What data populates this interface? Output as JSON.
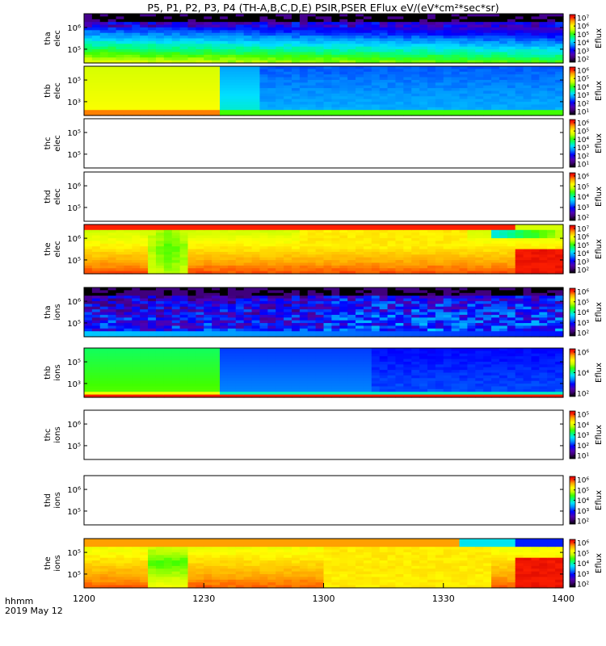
{
  "chart_data": {
    "type": "heatmap",
    "title": "P5, P1, P2, P3, P4 (TH-A,B,C,D,E) PSIR,PSER EFlux eV/(eV*cm²*sec*sr)",
    "time_axis": {
      "label_line1": "hhmm",
      "label_line2": "2019 May 12",
      "ticks": [
        "1200",
        "1230",
        "1300",
        "1330",
        "1400"
      ],
      "range_min": [
        0,
        120
      ]
    },
    "colorbar_label": "Eflux",
    "panels": [
      {
        "probe": "tha",
        "species": "elec",
        "y_ticks": [
          "10⁶",
          "10⁵"
        ],
        "colorbar_ticks": [
          "10⁷",
          "10⁶",
          "10⁵",
          "10⁴",
          "10³",
          "10²"
        ],
        "has_data": true
      },
      {
        "probe": "thb",
        "species": "elec",
        "y_ticks": [
          "10⁵",
          "10³"
        ],
        "colorbar_ticks": [
          "10⁶",
          "10⁵",
          "10⁴",
          "10³",
          "10²",
          "10¹"
        ],
        "has_data": true
      },
      {
        "probe": "thc",
        "species": "elec",
        "y_ticks": [
          "10⁵",
          "10⁵"
        ],
        "colorbar_ticks": [
          "10⁶",
          "10⁵",
          "10⁴",
          "10³",
          "10²",
          "10¹"
        ],
        "has_data": false
      },
      {
        "probe": "thd",
        "species": "elec",
        "y_ticks": [
          "10⁶",
          "10⁵"
        ],
        "colorbar_ticks": [
          "10⁶",
          "10⁵",
          "10⁴",
          "10³",
          "10²"
        ],
        "has_data": false
      },
      {
        "probe": "the",
        "species": "elec",
        "y_ticks": [
          "10⁶",
          "10⁵"
        ],
        "colorbar_ticks": [
          "10⁷",
          "10⁶",
          "10⁵",
          "10⁴",
          "10³",
          "10²"
        ],
        "has_data": true
      },
      {
        "probe": "tha",
        "species": "ions",
        "y_ticks": [
          "10⁶",
          "10⁵"
        ],
        "colorbar_ticks": [
          "10⁶",
          "10⁵",
          "10⁴",
          "10³",
          "10²"
        ],
        "has_data": true
      },
      {
        "probe": "thb",
        "species": "ions",
        "y_ticks": [
          "10⁵",
          "10³"
        ],
        "colorbar_ticks": [
          "10⁶",
          "10⁴",
          "10²"
        ],
        "has_data": true
      },
      {
        "probe": "thc",
        "species": "ions",
        "y_ticks": [
          "10⁶",
          "10⁵"
        ],
        "colorbar_ticks": [
          "10⁵",
          "10⁴",
          "10³",
          "10²",
          "10¹"
        ],
        "has_data": false
      },
      {
        "probe": "thd",
        "species": "ions",
        "y_ticks": [
          "10⁶",
          "10⁵"
        ],
        "colorbar_ticks": [
          "10⁶",
          "10⁵",
          "10⁴",
          "10³",
          "10²"
        ],
        "has_data": false
      },
      {
        "probe": "the",
        "species": "ions",
        "y_ticks": [
          "10⁵",
          "10⁵"
        ],
        "colorbar_ticks": [
          "10⁶",
          "10⁵",
          "10⁴",
          "10³",
          "10²"
        ],
        "has_data": true
      }
    ]
  }
}
